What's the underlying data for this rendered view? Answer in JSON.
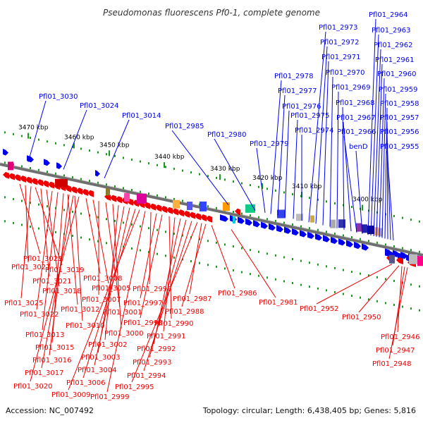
{
  "header": {
    "title": "Pseudomonas fluorescens Pf0-1, complete genome"
  },
  "footer": {
    "accession": "Accession: NC_007492",
    "summary": "Topology: circular; Length: 6,438,405 bp; Genes: 5,816"
  },
  "colors": {
    "forward": "#0000ee",
    "reverse": "#ee0000",
    "backbone": "#6f6f6f",
    "ruler": "#1a9a1a"
  },
  "ticks": [
    "3470 kbp",
    "3460 kbp",
    "3450 kbp",
    "3440 kbp",
    "3430 kbp",
    "3420 kbp",
    "3410 kbp",
    "3400 kbp"
  ],
  "forward_labels": [
    "Pfl01_3030",
    "Pfl01_3024",
    "Pfl01_3014",
    "Pfl01_2985",
    "Pfl01_2980",
    "Pfl01_2979",
    "Pfl01_2978",
    "Pfl01_2977",
    "Pfl01_2976",
    "Pfl01_2975",
    "Pfl01_2974",
    "Pfl01_2973",
    "Pfl01_2972",
    "Pfl01_2971",
    "Pfl01_2970",
    "Pfl01_2969",
    "Pfl01_2968",
    "Pfl01_2967",
    "Pfl01_2966",
    "benD",
    "Pfl01_2964",
    "Pfl01_2963",
    "Pfl01_2962",
    "Pfl01_2961",
    "Pfl01_2960",
    "Pfl01_2959",
    "Pfl01_2958",
    "Pfl01_2957",
    "Pfl01_2956",
    "Pfl01_2955"
  ],
  "reverse_labels": [
    "Pfl01_3023",
    "Pfl01_3027",
    "Pfl01_3019",
    "Pfl01_3021",
    "Pfl01_3018",
    "Pfl01_3025",
    "Pfl01_3012",
    "Pfl01_3022",
    "Pfl01_3010",
    "Pfl01_3013",
    "Pfl01_3015",
    "Pfl01_3016",
    "Pfl01_3017",
    "Pfl01_3020",
    "Pfl01_3008",
    "Pfl01_3005",
    "Pfl01_3007",
    "Pfl01_3001",
    "Pfl01_3000",
    "Pfl01_3002",
    "Pfl01_3003",
    "Pfl01_3004",
    "Pfl01_3006",
    "Pfl01_3009",
    "Pfl01_2999",
    "Pfl01_2996",
    "Pfl01_2997",
    "Pfl01_2998",
    "Pfl01_2990",
    "Pfl01_2991",
    "Pfl01_2992",
    "Pfl01_2993",
    "Pfl01_2994",
    "Pfl01_2995",
    "Pfl01_2987",
    "Pfl01_2988",
    "Pfl01_2986",
    "Pfl01_2981",
    "Pfl01_2952",
    "Pfl01_2950",
    "Pfl01_2946",
    "Pfl01_2947",
    "Pfl01_2948"
  ]
}
